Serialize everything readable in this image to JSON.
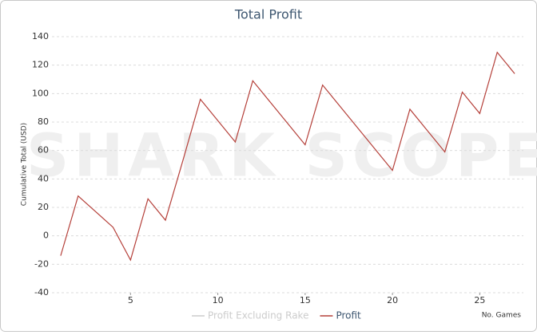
{
  "chart_data": {
    "type": "line",
    "title": "Total Profit",
    "watermark": "SHARK SCOPE",
    "y_label": "Cumulative Total (USD)",
    "x_label": "No. Games",
    "x": [
      1,
      2,
      3,
      4,
      5,
      6,
      7,
      8,
      9,
      10,
      11,
      12,
      13,
      14,
      15,
      16,
      17,
      18,
      19,
      20,
      21,
      22,
      23,
      24,
      25,
      26,
      27
    ],
    "series": [
      {
        "name": "Profit Excluding Rake",
        "color": "#cccccc",
        "hidden": true
      },
      {
        "name": "Profit",
        "color": "#b5403a",
        "values": [
          -14,
          28,
          17,
          6,
          -17,
          26,
          11,
          53,
          96,
          81,
          66,
          109,
          94,
          79,
          64,
          106,
          91,
          76,
          61,
          46,
          89,
          74,
          59,
          101,
          86,
          129,
          114
        ]
      }
    ],
    "xlim": [
      0.5,
      27.5
    ],
    "xticks": [
      5,
      10,
      15,
      20,
      25
    ],
    "ylim": [
      -40,
      140
    ],
    "yticks": [
      -40,
      -20,
      0,
      20,
      40,
      60,
      80,
      100,
      120,
      140
    ],
    "grid": true,
    "legend": "bottom"
  }
}
